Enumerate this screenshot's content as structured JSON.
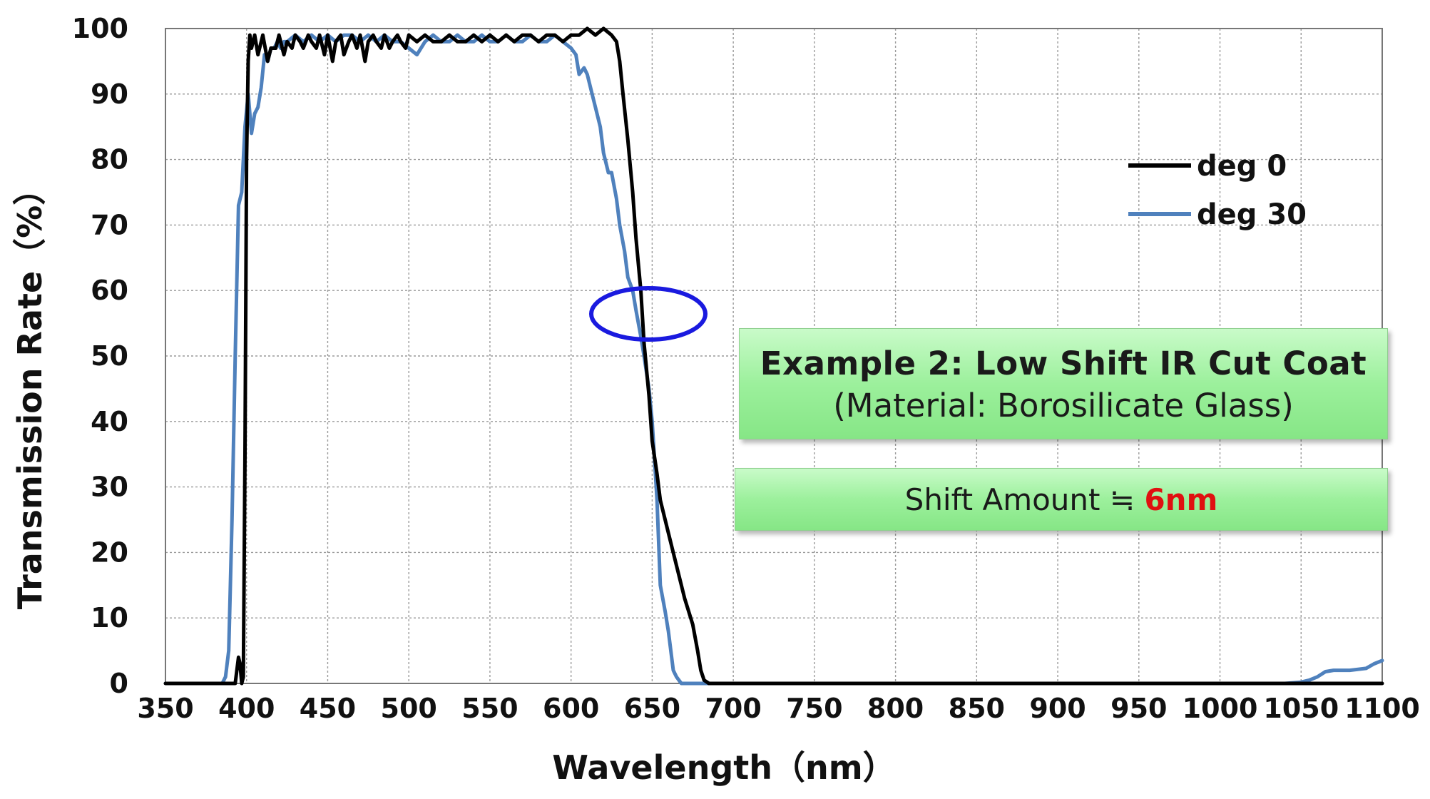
{
  "chart_data": {
    "type": "line",
    "xlabel": "Wavelength（nm）",
    "ylabel": "Transmission Rate（%）",
    "xlim": [
      350,
      1100
    ],
    "ylim": [
      0,
      100
    ],
    "xticks": [
      "350",
      "400",
      "450",
      "500",
      "550",
      "600",
      "650",
      "700",
      "750",
      "800",
      "850",
      "900",
      "950",
      "1000",
      "1050",
      "1100"
    ],
    "yticks": [
      "0",
      "10",
      "20",
      "30",
      "40",
      "50",
      "60",
      "70",
      "80",
      "90",
      "100"
    ],
    "grid": true,
    "legend_position": "top-right",
    "series": [
      {
        "name": "deg 0",
        "color": "#000000",
        "x": [
          350,
          393,
          395,
          396,
          397,
          398,
          399,
          400,
          401,
          402,
          403,
          405,
          407,
          410,
          413,
          415,
          418,
          420,
          423,
          425,
          428,
          430,
          433,
          435,
          438,
          440,
          443,
          445,
          448,
          450,
          453,
          455,
          458,
          460,
          463,
          465,
          468,
          470,
          473,
          475,
          478,
          480,
          483,
          485,
          488,
          490,
          493,
          495,
          498,
          500,
          505,
          510,
          515,
          520,
          525,
          530,
          535,
          540,
          545,
          550,
          555,
          560,
          565,
          570,
          575,
          580,
          585,
          590,
          595,
          600,
          605,
          610,
          615,
          620,
          625,
          628,
          630,
          632,
          635,
          638,
          640,
          643,
          645,
          648,
          650,
          653,
          655,
          660,
          665,
          670,
          675,
          678,
          680,
          682,
          685,
          688,
          690,
          693,
          695,
          700,
          1100
        ],
        "y": [
          0,
          0,
          4,
          3,
          0,
          1,
          35,
          80,
          95,
          99,
          97,
          99,
          96,
          99,
          95,
          97,
          97,
          99,
          96,
          98,
          97,
          99,
          98,
          97,
          99,
          98,
          97,
          99,
          96,
          99,
          95,
          98,
          99,
          96,
          98,
          99,
          97,
          99,
          95,
          98,
          99,
          98,
          97,
          99,
          97,
          98,
          99,
          98,
          97,
          99,
          98,
          99,
          98,
          98,
          99,
          98,
          98,
          99,
          98,
          99,
          98,
          99,
          98,
          99,
          99,
          98,
          99,
          99,
          98,
          99,
          99,
          100,
          99,
          100,
          99,
          98,
          95,
          90,
          83,
          75,
          68,
          60,
          52,
          44,
          37,
          32,
          28,
          23,
          18,
          13,
          9,
          5,
          2,
          0.5,
          0,
          0,
          0,
          0,
          0,
          0,
          0
        ]
      },
      {
        "name": "deg 30",
        "color": "#4f81bd",
        "x": [
          350,
          385,
          387,
          389,
          391,
          393,
          395,
          397,
          399,
          401,
          403,
          405,
          407,
          409,
          411,
          413,
          415,
          417,
          419,
          421,
          423,
          425,
          430,
          435,
          440,
          445,
          450,
          455,
          460,
          465,
          470,
          475,
          480,
          485,
          490,
          495,
          500,
          505,
          510,
          515,
          520,
          525,
          530,
          535,
          540,
          545,
          550,
          555,
          560,
          565,
          570,
          575,
          580,
          585,
          590,
          595,
          600,
          603,
          605,
          608,
          610,
          613,
          615,
          618,
          620,
          623,
          625,
          628,
          630,
          633,
          635,
          638,
          640,
          643,
          645,
          648,
          650,
          653,
          655,
          658,
          660,
          663,
          665,
          668,
          670,
          1040,
          1050,
          1055,
          1060,
          1065,
          1070,
          1080,
          1090,
          1095,
          1100
        ],
        "y": [
          0,
          0,
          1,
          5,
          25,
          50,
          73,
          75,
          85,
          90,
          84,
          87,
          88,
          91,
          96,
          95,
          97,
          97,
          98,
          97,
          98,
          98,
          99,
          98,
          99,
          98,
          99,
          98,
          99,
          99,
          98,
          99,
          98,
          99,
          98,
          98,
          97,
          96,
          98,
          99,
          98,
          98,
          99,
          98,
          98,
          99,
          98,
          98,
          99,
          98,
          98,
          99,
          98,
          98,
          99,
          98,
          97,
          96,
          93,
          94,
          93,
          90,
          88,
          85,
          81,
          78,
          78,
          74,
          70,
          66,
          62,
          60,
          57,
          53,
          50,
          45,
          40,
          28,
          15,
          11,
          8,
          2,
          1,
          0,
          0,
          0,
          0.2,
          0.5,
          1,
          1.8,
          2,
          2,
          2.3,
          3,
          3.5
        ]
      }
    ]
  },
  "annotations": {
    "title_line1": "Example 2: Low Shift IR Cut Coat",
    "title_line2": "(Material: Borosilicate Glass)",
    "shift_label": "Shift Amount ≒ ",
    "shift_value": "6nm",
    "highlight_color": "#1a1adf"
  }
}
